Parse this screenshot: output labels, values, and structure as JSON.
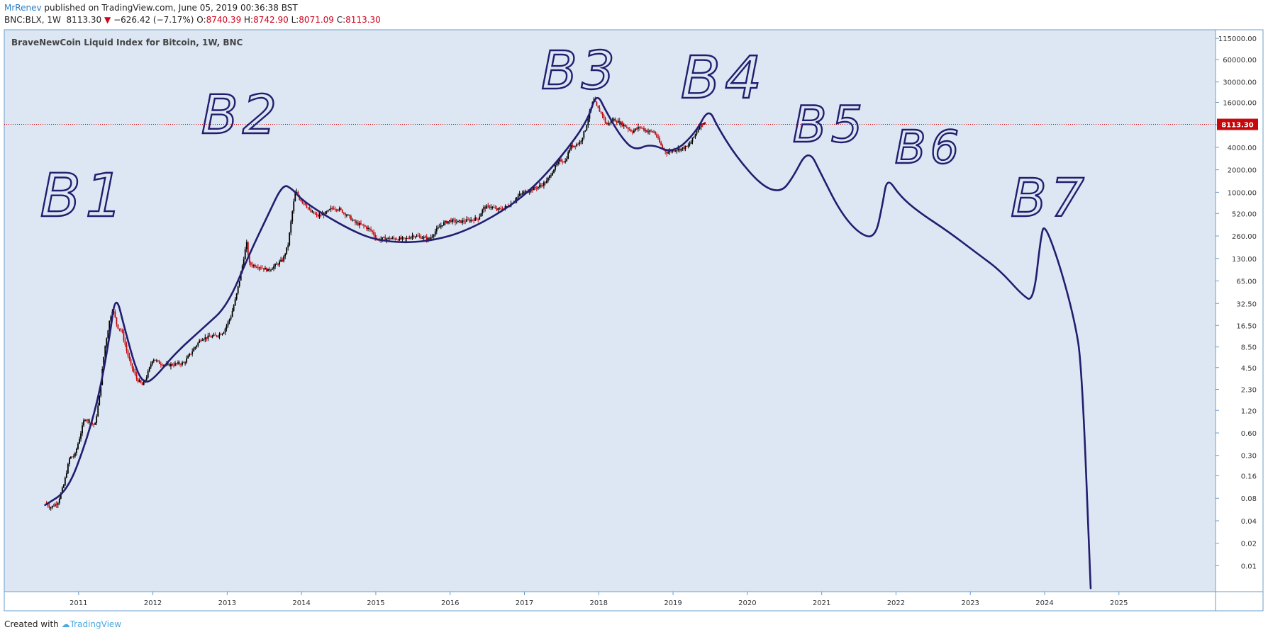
{
  "header": {
    "author": "MrRenev",
    "published_text": "published on TradingView.com, June 05, 2019 00:36:38 BST",
    "symbol_interval": "BNC:BLX, 1W",
    "last": "8113.30",
    "change_arrow": "▼",
    "change": "−626.42 (−7.17%)",
    "open_label": "O:",
    "open": "8740.39",
    "high_label": "H:",
    "high": "8742.90",
    "low_label": "L:",
    "low": "8071.09",
    "close_label": "C:",
    "close": "8113.30"
  },
  "footer": {
    "created_with": "Created with",
    "brand": "TradingView"
  },
  "colors": {
    "pane_bg": "#dde7f3",
    "pane_border": "#6a9ccc",
    "up": "#000000",
    "down": "#c6070b",
    "drawing": "#231d6f",
    "price_line": "#c6070b",
    "label_bg": "#c6070b"
  },
  "chart_data": {
    "type": "candlestick",
    "title": "BraveNewCoin Liquid Index for Bitcoin, 1W, BNC",
    "y_scale": "log",
    "ylim": [
      0.0045,
      150000
    ],
    "xlim": [
      2010.0,
      2026.3
    ],
    "last_price": 8113.3,
    "last_price_label": "8113.30",
    "y_ticks": [
      {
        "label": "115000.00",
        "v": 115000
      },
      {
        "label": "60000.00",
        "v": 60000
      },
      {
        "label": "30000.00",
        "v": 30000
      },
      {
        "label": "16000.00",
        "v": 16000
      },
      {
        "label": "8000.00",
        "v": 8000
      },
      {
        "label": "4000.00",
        "v": 4000
      },
      {
        "label": "2000.00",
        "v": 2000
      },
      {
        "label": "1000.00",
        "v": 1000
      },
      {
        "label": "520.00",
        "v": 520
      },
      {
        "label": "260.00",
        "v": 260
      },
      {
        "label": "130.00",
        "v": 130
      },
      {
        "label": "65.00",
        "v": 65
      },
      {
        "label": "32.50",
        "v": 32.5
      },
      {
        "label": "16.50",
        "v": 16.5
      },
      {
        "label": "8.50",
        "v": 8.5
      },
      {
        "label": "4.50",
        "v": 4.5
      },
      {
        "label": "2.30",
        "v": 2.3
      },
      {
        "label": "1.20",
        "v": 1.2
      },
      {
        "label": "0.60",
        "v": 0.6
      },
      {
        "label": "0.30",
        "v": 0.3
      },
      {
        "label": "0.16",
        "v": 0.16
      },
      {
        "label": "0.08",
        "v": 0.08
      },
      {
        "label": "0.04",
        "v": 0.04
      },
      {
        "label": "0.02",
        "v": 0.02
      },
      {
        "label": "0.01",
        "v": 0.01
      }
    ],
    "x_ticks": [
      {
        "label": "2011",
        "v": 2011
      },
      {
        "label": "2012",
        "v": 2012
      },
      {
        "label": "2013",
        "v": 2013
      },
      {
        "label": "2014",
        "v": 2014
      },
      {
        "label": "2015",
        "v": 2015
      },
      {
        "label": "2016",
        "v": 2016
      },
      {
        "label": "2017",
        "v": 2017
      },
      {
        "label": "2018",
        "v": 2018
      },
      {
        "label": "2019",
        "v": 2019
      },
      {
        "label": "2020",
        "v": 2020
      },
      {
        "label": "2021",
        "v": 2021
      },
      {
        "label": "2022",
        "v": 2022
      },
      {
        "label": "2023",
        "v": 2023
      },
      {
        "label": "2024",
        "v": 2024
      },
      {
        "label": "2025",
        "v": 2025
      }
    ],
    "price_path": [
      [
        2010.55,
        0.07
      ],
      [
        2010.62,
        0.06
      ],
      [
        2010.72,
        0.07
      ],
      [
        2010.8,
        0.12
      ],
      [
        2010.88,
        0.28
      ],
      [
        2010.95,
        0.3
      ],
      [
        2011.02,
        0.55
      ],
      [
        2011.08,
        0.95
      ],
      [
        2011.15,
        0.85
      ],
      [
        2011.22,
        0.75
      ],
      [
        2011.28,
        1.8
      ],
      [
        2011.35,
        8
      ],
      [
        2011.42,
        20
      ],
      [
        2011.46,
        28
      ],
      [
        2011.52,
        16
      ],
      [
        2011.58,
        14
      ],
      [
        2011.64,
        8
      ],
      [
        2011.7,
        5
      ],
      [
        2011.78,
        3.2
      ],
      [
        2011.86,
        2.6
      ],
      [
        2011.92,
        3.5
      ],
      [
        2012.0,
        6
      ],
      [
        2012.08,
        5.2
      ],
      [
        2012.18,
        4.8
      ],
      [
        2012.3,
        5.0
      ],
      [
        2012.42,
        5.2
      ],
      [
        2012.55,
        8
      ],
      [
        2012.65,
        11
      ],
      [
        2012.75,
        11.5
      ],
      [
        2012.85,
        12
      ],
      [
        2012.95,
        13.5
      ],
      [
        2013.05,
        22
      ],
      [
        2013.12,
        40
      ],
      [
        2013.2,
        100
      ],
      [
        2013.26,
        210
      ],
      [
        2013.3,
        110
      ],
      [
        2013.36,
        105
      ],
      [
        2013.45,
        100
      ],
      [
        2013.55,
        90
      ],
      [
        2013.65,
        105
      ],
      [
        2013.75,
        125
      ],
      [
        2013.82,
        200
      ],
      [
        2013.87,
        500
      ],
      [
        2013.92,
        1050
      ],
      [
        2013.98,
        800
      ],
      [
        2014.05,
        700
      ],
      [
        2014.12,
        550
      ],
      [
        2014.22,
        480
      ],
      [
        2014.32,
        520
      ],
      [
        2014.42,
        620
      ],
      [
        2014.5,
        600
      ],
      [
        2014.62,
        490
      ],
      [
        2014.72,
        390
      ],
      [
        2014.85,
        350
      ],
      [
        2014.95,
        300
      ],
      [
        2015.02,
        230
      ],
      [
        2015.1,
        240
      ],
      [
        2015.25,
        240
      ],
      [
        2015.4,
        235
      ],
      [
        2015.5,
        265
      ],
      [
        2015.62,
        250
      ],
      [
        2015.72,
        235
      ],
      [
        2015.8,
        300
      ],
      [
        2015.9,
        380
      ],
      [
        2016.0,
        420
      ],
      [
        2016.1,
        400
      ],
      [
        2016.25,
        420
      ],
      [
        2016.38,
        450
      ],
      [
        2016.45,
        620
      ],
      [
        2016.55,
        650
      ],
      [
        2016.62,
        580
      ],
      [
        2016.72,
        610
      ],
      [
        2016.82,
        700
      ],
      [
        2016.92,
        900
      ],
      [
        2017.0,
        1000
      ],
      [
        2017.1,
        1100
      ],
      [
        2017.2,
        1200
      ],
      [
        2017.3,
        1400
      ],
      [
        2017.4,
        2100
      ],
      [
        2017.48,
        2700
      ],
      [
        2017.55,
        2600
      ],
      [
        2017.62,
        4100
      ],
      [
        2017.68,
        4300
      ],
      [
        2017.75,
        4700
      ],
      [
        2017.82,
        7000
      ],
      [
        2017.87,
        11000
      ],
      [
        2017.93,
        17500
      ],
      [
        2017.98,
        13500
      ],
      [
        2018.05,
        11000
      ],
      [
        2018.1,
        8000
      ],
      [
        2018.2,
        9500
      ],
      [
        2018.28,
        8500
      ],
      [
        2018.35,
        7800
      ],
      [
        2018.45,
        6500
      ],
      [
        2018.55,
        7500
      ],
      [
        2018.65,
        6600
      ],
      [
        2018.75,
        6400
      ],
      [
        2018.85,
        4000
      ],
      [
        2018.92,
        3400
      ],
      [
        2019.0,
        3700
      ],
      [
        2019.1,
        3800
      ],
      [
        2019.2,
        4100
      ],
      [
        2019.28,
        5500
      ],
      [
        2019.36,
        7900
      ],
      [
        2019.42,
        8740
      ],
      [
        2019.43,
        8113
      ]
    ],
    "annotations": [
      "B1",
      "B2",
      "B3",
      "B4",
      "B5",
      "B6",
      "B7"
    ],
    "drawn_curve": [
      [
        2010.55,
        0.065
      ],
      [
        2010.85,
        0.1
      ],
      [
        2011.1,
        0.45
      ],
      [
        2011.28,
        2
      ],
      [
        2011.42,
        12
      ],
      [
        2011.5,
        45
      ],
      [
        2011.62,
        15
      ],
      [
        2011.78,
        4
      ],
      [
        2011.9,
        2.7
      ],
      [
        2012.05,
        3.5
      ],
      [
        2012.3,
        7
      ],
      [
        2012.7,
        16
      ],
      [
        2013.0,
        30
      ],
      [
        2013.3,
        150
      ],
      [
        2013.55,
        500
      ],
      [
        2013.75,
        1300
      ],
      [
        2013.88,
        1100
      ],
      [
        2014.0,
        800
      ],
      [
        2014.3,
        500
      ],
      [
        2014.7,
        300
      ],
      [
        2015.0,
        230
      ],
      [
        2015.4,
        210
      ],
      [
        2015.8,
        230
      ],
      [
        2016.2,
        300
      ],
      [
        2016.7,
        550
      ],
      [
        2017.1,
        1100
      ],
      [
        2017.5,
        3000
      ],
      [
        2017.85,
        9000
      ],
      [
        2017.97,
        22000
      ],
      [
        2018.1,
        12000
      ],
      [
        2018.3,
        5500
      ],
      [
        2018.48,
        3600
      ],
      [
        2018.7,
        4500
      ],
      [
        2019.0,
        3300
      ],
      [
        2019.3,
        6200
      ],
      [
        2019.48,
        13500
      ],
      [
        2019.6,
        7500
      ],
      [
        2019.85,
        3000
      ],
      [
        2020.2,
        1200
      ],
      [
        2020.45,
        1000
      ],
      [
        2020.6,
        1500
      ],
      [
        2020.82,
        3900
      ],
      [
        2021.0,
        1700
      ],
      [
        2021.25,
        550
      ],
      [
        2021.5,
        280
      ],
      [
        2021.72,
        240
      ],
      [
        2021.82,
        700
      ],
      [
        2021.88,
        1600
      ],
      [
        2022.05,
        900
      ],
      [
        2022.3,
        550
      ],
      [
        2022.7,
        300
      ],
      [
        2023.1,
        150
      ],
      [
        2023.4,
        90
      ],
      [
        2023.7,
        42
      ],
      [
        2023.85,
        34
      ],
      [
        2023.95,
        260
      ],
      [
        2024.0,
        380
      ],
      [
        2024.2,
        110
      ],
      [
        2024.4,
        20
      ],
      [
        2024.5,
        5
      ],
      [
        2024.62,
        0.005
      ]
    ]
  }
}
